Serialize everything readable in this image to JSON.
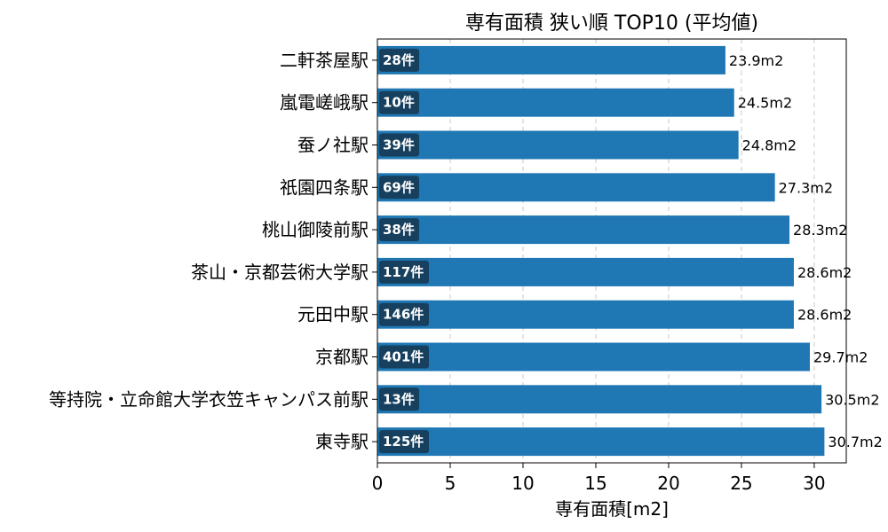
{
  "chart_data": {
    "type": "bar",
    "orientation": "horizontal",
    "title": "専有面積 狭い順 TOP10 (平均値)",
    "xlabel": "専有面積[m2]",
    "ylabel": "",
    "xlim": [
      0,
      32.2
    ],
    "xticks": [
      0,
      5,
      10,
      15,
      20,
      25,
      30
    ],
    "grid": "x-dashed",
    "bar_color": "#1f77b4",
    "badge_color": "#17405f",
    "categories": [
      "二軒茶屋駅",
      "嵐電嵯峨駅",
      "蚕ノ社駅",
      "祇園四条駅",
      "桃山御陵前駅",
      "茶山・京都芸術大学駅",
      "元田中駅",
      "京都駅",
      "等持院・立命館大学衣笠キャンパス前駅",
      "東寺駅"
    ],
    "values": [
      23.9,
      24.5,
      24.8,
      27.3,
      28.3,
      28.6,
      28.6,
      29.7,
      30.5,
      30.7
    ],
    "value_labels": [
      "23.9m2",
      "24.5m2",
      "24.8m2",
      "27.3m2",
      "28.3m2",
      "28.6m2",
      "28.6m2",
      "29.7m2",
      "30.5m2",
      "30.7m2"
    ],
    "counts": [
      "28件",
      "10件",
      "39件",
      "69件",
      "38件",
      "117件",
      "146件",
      "401件",
      "13件",
      "125件"
    ]
  }
}
